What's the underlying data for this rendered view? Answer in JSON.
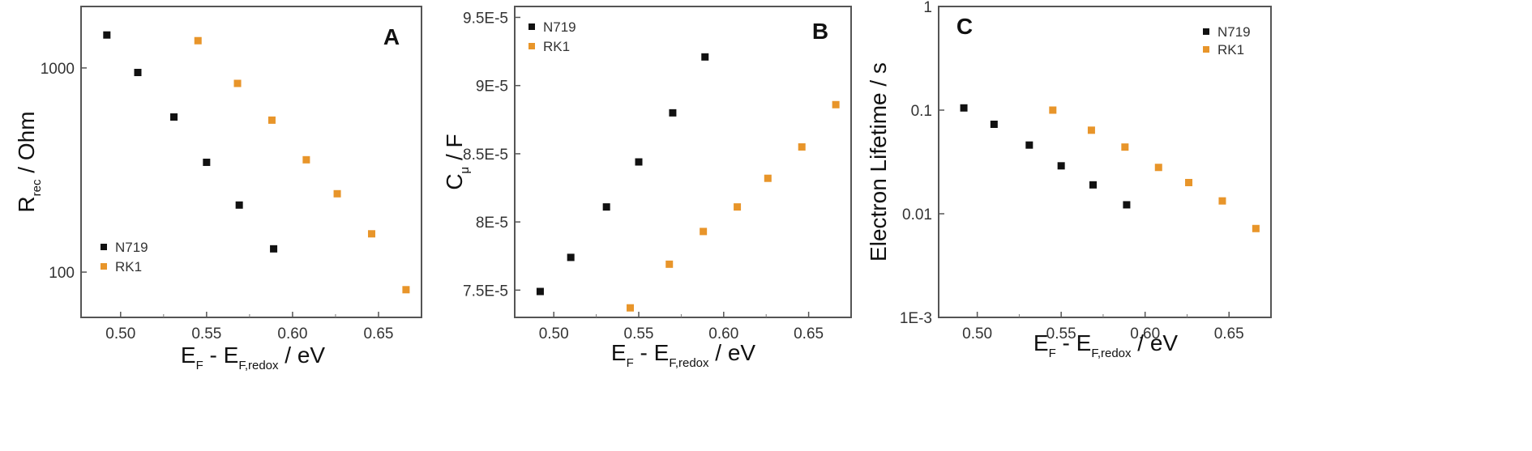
{
  "chart_data": [
    {
      "type": "scatter",
      "panel_label": "A",
      "title": "",
      "xlabel": {
        "main": "E",
        "sub1": "F",
        "mid": " - E",
        "sub2": "F,redox",
        "tail": " / eV"
      },
      "ylabel": {
        "main": "R",
        "sub": "rec",
        "tail": " / Ohm"
      },
      "x_scale": "linear",
      "y_scale": "log",
      "xlim": [
        0.477,
        0.675
      ],
      "ylim": [
        60,
        2000
      ],
      "x_ticks": [
        0.5,
        0.55,
        0.6,
        0.65
      ],
      "x_tick_labels": [
        "0.50",
        "0.55",
        "0.60",
        "0.65"
      ],
      "y_ticks": [
        100,
        1000
      ],
      "y_tick_labels": [
        "100",
        "1000"
      ],
      "legend_position": "bottom-left",
      "series": [
        {
          "name": "N719",
          "color": "#111111",
          "x": [
            0.492,
            0.51,
            0.531,
            0.55,
            0.569,
            0.589
          ],
          "y": [
            1450,
            950,
            575,
            345,
            213,
            130
          ]
        },
        {
          "name": "RK1",
          "color": "#e8952a",
          "x": [
            0.545,
            0.568,
            0.588,
            0.608,
            0.626,
            0.646,
            0.666
          ],
          "y": [
            1360,
            840,
            555,
            355,
            242,
            154,
            82
          ]
        }
      ]
    },
    {
      "type": "scatter",
      "panel_label": "B",
      "title": "",
      "xlabel": {
        "main": "E",
        "sub1": "F",
        "mid": " - E",
        "sub2": "F,redox",
        "tail": " / eV"
      },
      "ylabel": {
        "main": "C",
        "sub": "μ",
        "tail": " / F"
      },
      "x_scale": "linear",
      "y_scale": "linear",
      "xlim": [
        0.477,
        0.675
      ],
      "ylim": [
        7.3e-05,
        9.58e-05
      ],
      "x_ticks": [
        0.5,
        0.55,
        0.6,
        0.65
      ],
      "x_tick_labels": [
        "0.50",
        "0.55",
        "0.60",
        "0.65"
      ],
      "y_ticks": [
        7.5e-05,
        8e-05,
        8.5e-05,
        9e-05,
        9.5e-05
      ],
      "y_tick_labels": [
        "7.5E-5",
        "8E-5",
        "8.5E-5",
        "9E-5",
        "9.5E-5"
      ],
      "legend_position": "top-left",
      "series": [
        {
          "name": "N719",
          "color": "#111111",
          "x": [
            0.492,
            0.51,
            0.531,
            0.55,
            0.57,
            0.589
          ],
          "y": [
            7.49e-05,
            7.74e-05,
            8.11e-05,
            8.44e-05,
            8.8e-05,
            9.21e-05
          ]
        },
        {
          "name": "RK1",
          "color": "#e8952a",
          "x": [
            0.545,
            0.568,
            0.588,
            0.608,
            0.626,
            0.646,
            0.666
          ],
          "y": [
            7.37e-05,
            7.69e-05,
            7.93e-05,
            8.11e-05,
            8.32e-05,
            8.55e-05,
            8.86e-05
          ]
        }
      ]
    },
    {
      "type": "scatter",
      "panel_label": "C",
      "title": "",
      "xlabel": {
        "main": "E",
        "sub1": "F",
        "mid": " - E",
        "sub2": "F,redox",
        "tail": " / eV"
      },
      "ylabel": {
        "main": "Electron Lifetime / s",
        "sub": "",
        "tail": ""
      },
      "x_scale": "linear",
      "y_scale": "log",
      "xlim": [
        0.477,
        0.675
      ],
      "ylim": [
        0.001,
        1
      ],
      "x_ticks": [
        0.5,
        0.55,
        0.6,
        0.65
      ],
      "x_tick_labels": [
        "0.50",
        "0.55",
        "0.60",
        "0.65"
      ],
      "y_ticks": [
        0.001,
        0.01,
        0.1,
        1
      ],
      "y_tick_labels": [
        "1E-3",
        "0.01",
        "0.1",
        "1"
      ],
      "legend_position": "top-right",
      "series": [
        {
          "name": "N719",
          "color": "#111111",
          "x": [
            0.492,
            0.51,
            0.531,
            0.55,
            0.569,
            0.589
          ],
          "y": [
            0.105,
            0.073,
            0.046,
            0.029,
            0.019,
            0.0122
          ]
        },
        {
          "name": "RK1",
          "color": "#e8952a",
          "x": [
            0.545,
            0.568,
            0.588,
            0.608,
            0.626,
            0.646,
            0.666
          ],
          "y": [
            0.1,
            0.064,
            0.044,
            0.028,
            0.02,
            0.0133,
            0.0072
          ]
        }
      ]
    }
  ]
}
